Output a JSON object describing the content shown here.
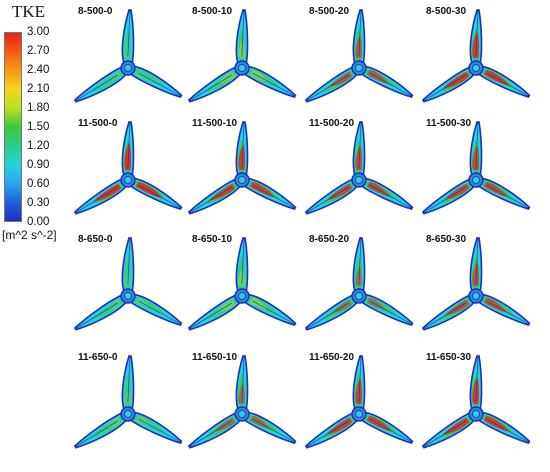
{
  "legend": {
    "title": "TKE",
    "unit": "[m^2 s^-2]",
    "ticks": [
      "3.00",
      "2.70",
      "2.40",
      "2.10",
      "1.80",
      "1.50",
      "1.20",
      "0.90",
      "0.60",
      "0.30",
      "0.00"
    ],
    "colors": {
      "high": "#e8201a",
      "mid_high": "#f0d81c",
      "mid": "#3ec83a",
      "mid_low": "#28d2d6",
      "low": "#1b2fc6"
    }
  },
  "panels": [
    {
      "label": "8-500-0",
      "intensity": 0.2
    },
    {
      "label": "8-500-10",
      "intensity": 0.45
    },
    {
      "label": "8-500-20",
      "intensity": 0.7
    },
    {
      "label": "8-500-30",
      "intensity": 0.9
    },
    {
      "label": "11-500-0",
      "intensity": 0.95
    },
    {
      "label": "11-500-10",
      "intensity": 0.85
    },
    {
      "label": "11-500-20",
      "intensity": 0.8
    },
    {
      "label": "11-500-30",
      "intensity": 0.8
    },
    {
      "label": "8-650-0",
      "intensity": 0.25
    },
    {
      "label": "8-650-10",
      "intensity": 0.45
    },
    {
      "label": "8-650-20",
      "intensity": 0.55
    },
    {
      "label": "8-650-30",
      "intensity": 0.75
    },
    {
      "label": "11-650-0",
      "intensity": 0.3
    },
    {
      "label": "11-650-10",
      "intensity": 0.6
    },
    {
      "label": "11-650-20",
      "intensity": 0.85
    },
    {
      "label": "11-650-30",
      "intensity": 0.9
    }
  ]
}
